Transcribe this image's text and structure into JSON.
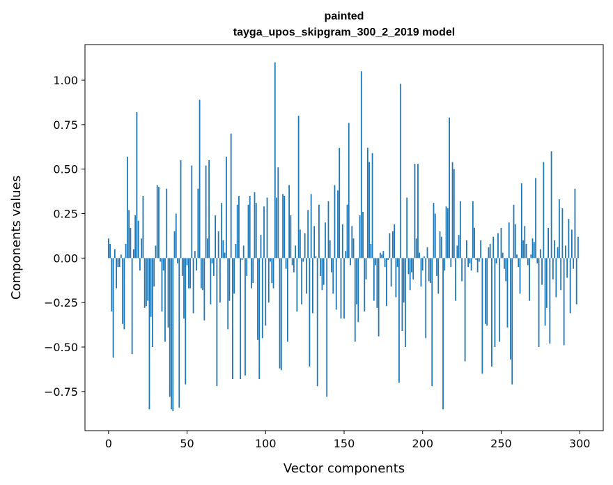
{
  "chart_data": {
    "type": "bar",
    "title_line1": "painted",
    "title_line2": "tayga_upos_skipgram_300_2_2019 model",
    "xlabel": "Vector components",
    "ylabel": "Components values",
    "xlim": [
      -15,
      315
    ],
    "ylim": [
      -0.97,
      1.2
    ],
    "xticks": [
      0,
      50,
      100,
      150,
      200,
      250,
      300
    ],
    "xtick_labels": [
      "0",
      "50",
      "100",
      "150",
      "200",
      "250",
      "300"
    ],
    "yticks": [
      -0.75,
      -0.5,
      -0.25,
      0,
      0.25,
      0.5,
      0.75,
      1.0
    ],
    "ytick_labels": [
      "−0.75",
      "−0.50",
      "−0.25",
      "0.00",
      "0.25",
      "0.50",
      "0.75",
      "1.00"
    ],
    "grid": false,
    "bar_color": "#1f77b4",
    "values": [
      0.11,
      0.08,
      -0.3,
      -0.56,
      0.05,
      -0.17,
      -0.05,
      -0.05,
      0.02,
      -0.37,
      -0.4,
      0.08,
      0.57,
      0.27,
      0.17,
      -0.54,
      0.05,
      0.24,
      0.82,
      0.21,
      -0.07,
      0.11,
      0.35,
      -0.28,
      -0.27,
      -0.24,
      -0.85,
      -0.33,
      -0.5,
      -0.16,
      0.07,
      0.41,
      0.4,
      -0.02,
      -0.3,
      -0.07,
      -0.47,
      0.39,
      -0.39,
      -0.78,
      -0.85,
      -0.86,
      0.15,
      0.25,
      -0.03,
      -0.84,
      0.55,
      -0.1,
      -0.34,
      -0.71,
      -0.04,
      -0.17,
      -0.17,
      0.52,
      -0.31,
      0.04,
      -0.07,
      0.39,
      0.89,
      -0.17,
      -0.18,
      -0.35,
      0.52,
      0.11,
      0.55,
      -0.26,
      -0.03,
      -0.1,
      0.24,
      -0.72,
      0.15,
      -0.25,
      0.31,
      0.1,
      0.03,
      0.57,
      -0.4,
      -0.24,
      0.7,
      -0.68,
      -0.2,
      0.08,
      0.3,
      0.35,
      -0.68,
      -0.01,
      0.07,
      -0.66,
      -0.1,
      0.3,
      0.35,
      -0.17,
      -0.14,
      0.37,
      0.31,
      -0.46,
      -0.68,
      0.13,
      -0.45,
      0.29,
      -0.38,
      0.34,
      -0.25,
      -0.02,
      -0.14,
      -0.17,
      1.1,
      0.34,
      0.51,
      -0.62,
      -0.63,
      0.36,
      0.35,
      -0.06,
      -0.47,
      0.41,
      0.24,
      -0.04,
      -0.08,
      0.07,
      -0.3,
      0.8,
      0.16,
      -0.26,
      -0.02,
      0.14,
      -0.2,
      0.27,
      -0.61,
      0.36,
      -0.31,
      0.18,
      0.01,
      -0.72,
      0.3,
      -0.1,
      -0.18,
      -0.15,
      0.2,
      -0.78,
      0.32,
      0.1,
      -0.08,
      -0.2,
      0.41,
      -0.29,
      0.38,
      0.62,
      -0.34,
      0.19,
      -0.34,
      0.04,
      0.3,
      0.76,
      -0.04,
      0.18,
      0.11,
      -0.47,
      -0.26,
      -0.36,
      0.24,
      1.05,
      0.26,
      -0.3,
      -0.12,
      0.62,
      0.54,
      0.08,
      0.59,
      -0.24,
      -0.04,
      -0.28,
      -0.44,
      0.03,
      0.02,
      0.04,
      -0.05,
      -0.27,
      -0.01,
      0.14,
      -0.16,
      0.15,
      0.19,
      -0.22,
      -0.05,
      -0.7,
      0.98,
      -0.41,
      -0.25,
      -0.5,
      0.34,
      -0.09,
      -0.18,
      -0.08,
      -0.12,
      0.53,
      0.11,
      0.53,
      0.03,
      -0.16,
      -0.07,
      0.01,
      -0.45,
      0.06,
      -0.13,
      -0.14,
      -0.72,
      0.31,
      0.25,
      -0.1,
      -0.2,
      0.15,
      0.12,
      -0.85,
      -0.07,
      0.29,
      0.28,
      0.79,
      -0.05,
      0.54,
      0.5,
      -0.24,
      0.07,
      0.13,
      0.32,
      -0.13,
      0.0,
      -0.58,
      0.1,
      -0.05,
      -0.03,
      -0.07,
      0.32,
      0.17,
      -0.01,
      -0.08,
      -0.02,
      0.1,
      -0.65,
      0.0,
      -0.37,
      -0.38,
      0.06,
      0.08,
      -0.61,
      0.12,
      -0.5,
      -0.03,
      0.14,
      -0.47,
      0.17,
      0.03,
      -0.06,
      -0.13,
      -0.39,
      0.2,
      -0.57,
      -0.71,
      0.3,
      0.19,
      0.02,
      -0.05,
      -0.2,
      0.42,
      0.1,
      0.18,
      0.08,
      -0.04,
      -0.24,
      0.02,
      0.11,
      0.09,
      0.45,
      -0.03,
      -0.5,
      0.05,
      -0.15,
      0.54,
      -0.38,
      -0.28,
      0.17,
      -0.48,
      0.6,
      -0.12,
      0.1,
      -0.22,
      0.06,
      0.33,
      -0.18,
      0.28,
      -0.49,
      0.07,
      -0.11,
      0.22,
      -0.31,
      0.16,
      -0.06,
      0.39,
      -0.26,
      0.12
    ]
  }
}
